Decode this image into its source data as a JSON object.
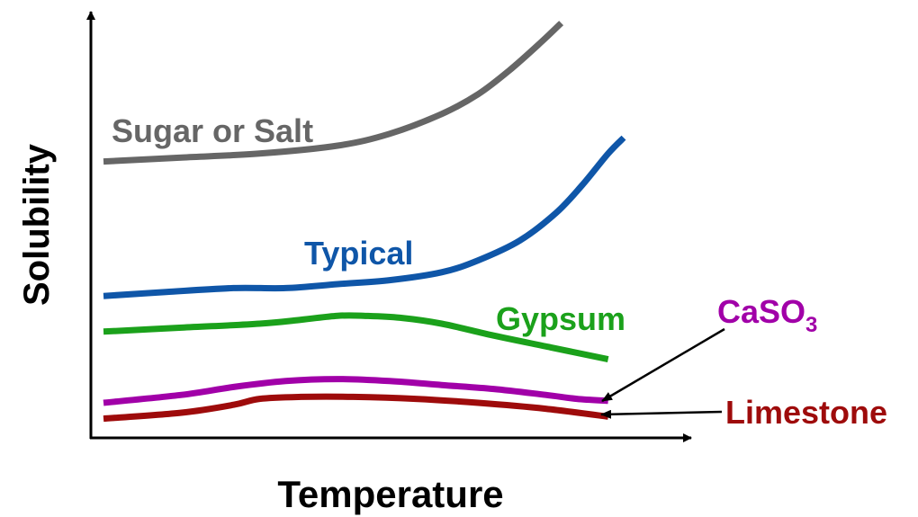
{
  "chart_data": {
    "type": "line",
    "xlabel": "Temperature",
    "ylabel": "Solubility",
    "axis_tick_labels": false,
    "xlim": [
      0,
      100
    ],
    "ylim": [
      0,
      100
    ],
    "series": [
      {
        "name": "Sugar or Salt",
        "color": "#666666",
        "label_style": "inline",
        "x": [
          0,
          15,
          30,
          45,
          55,
          65,
          72,
          78,
          84,
          88
        ],
        "y": [
          66,
          67,
          68,
          70,
          73,
          78,
          83,
          89,
          96,
          101
        ]
      },
      {
        "name": "Typical",
        "color": "#0F56A8",
        "label_style": "inline",
        "x": [
          0,
          12,
          25,
          35,
          45,
          55,
          65,
          72,
          80,
          87,
          92,
          97,
          100
        ],
        "y": [
          32,
          33,
          34,
          34,
          35,
          36,
          38,
          41,
          46,
          53,
          60,
          68,
          72
        ]
      },
      {
        "name": "Gypsum",
        "color": "#1BA11B",
        "label_style": "inline",
        "x": [
          0,
          15,
          30,
          38,
          45,
          50,
          57,
          65,
          75,
          86,
          97
        ],
        "y": [
          23,
          24,
          25,
          26,
          27,
          27,
          26.5,
          25,
          22,
          19,
          16
        ]
      },
      {
        "name": "CaSO3",
        "color": "#A100A8",
        "label_style": "callout",
        "x": [
          0,
          15,
          25,
          35,
          45,
          55,
          65,
          75,
          85,
          91,
          97
        ],
        "y": [
          5,
          7,
          9,
          10.5,
          11,
          10.5,
          9.5,
          8.5,
          7,
          6,
          5.5
        ]
      },
      {
        "name": "Limestone",
        "color": "#9E0B0B",
        "label_style": "callout",
        "x": [
          0,
          15,
          25,
          30,
          38,
          48,
          60,
          72,
          85,
          97
        ],
        "y": [
          1,
          2.5,
          4.5,
          6,
          6.5,
          6.5,
          6,
          5,
          3.5,
          1.5
        ]
      }
    ]
  }
}
